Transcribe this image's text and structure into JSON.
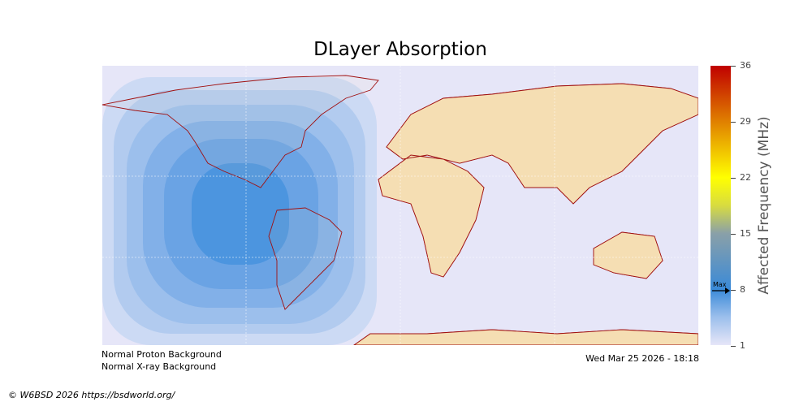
{
  "title": "DLayer Absorption",
  "colorbar": {
    "label": "Affected Frequency (MHz)",
    "ticks": [
      "36",
      "29",
      "22",
      "15",
      "8",
      "1"
    ],
    "min": 1,
    "max": 36,
    "max_marker": {
      "label": "Max",
      "value": 8
    }
  },
  "notes": {
    "proton": "Normal Proton Background",
    "xray": "Normal X-ray Background",
    "timestamp": "Wed Mar 25 2026 - 18:18"
  },
  "credit": "© W6BSD 2026 https://bsdworld.org/",
  "colors": {
    "ocean": "#e6e6f8",
    "land": "#f5deb3",
    "coast": "#a01010"
  }
}
